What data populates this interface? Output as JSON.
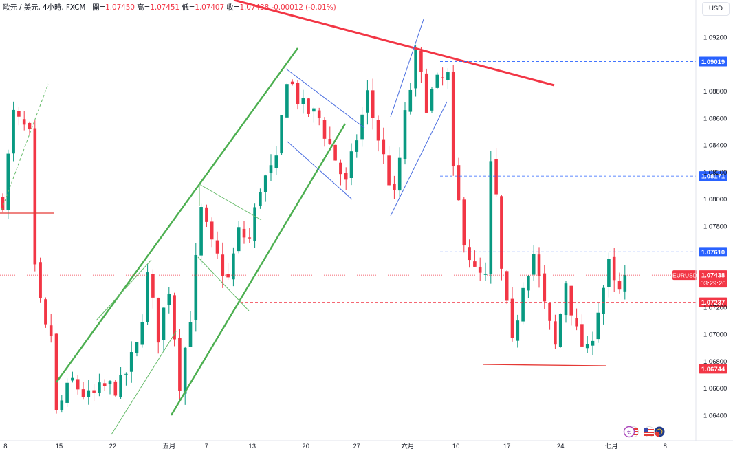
{
  "legend": {
    "symbol": "歐元 / 美元, 4小時, FXCM",
    "open_label": "開=",
    "open": "1.07450",
    "high_label": "高=",
    "high": "1.07451",
    "low_label": "低=",
    "low": "1.07407",
    "close_label": "收=",
    "close": "1.07438",
    "change": "-0.00012 (-0.01%)"
  },
  "currency": "USD",
  "colors": {
    "up": "#089981",
    "down": "#f23645",
    "trend_green": "#4caf50",
    "trend_red": "#f23645",
    "blue_line": "#2962ff",
    "price_tag": "#f23645",
    "blue_tag": "#2962ff"
  },
  "chart_data": {
    "type": "candlestick",
    "symbol": "EURUSD",
    "timeframe": "4h",
    "ylim": [
      1.0635,
      1.094
    ],
    "y_ticks": [
      "1.09200",
      "1.08800",
      "1.08600",
      "1.08400",
      "1.08200",
      "1.08000",
      "1.07800",
      "1.07200",
      "1.07000",
      "1.06800",
      "1.06600",
      "1.06400"
    ],
    "x_ticks": [
      {
        "label": "8",
        "x": 0.5
      },
      {
        "label": "15",
        "x": 10.5
      },
      {
        "label": "22",
        "x": 20.5
      },
      {
        "label": "五月",
        "x": 31
      },
      {
        "label": "7",
        "x": 38
      },
      {
        "label": "13",
        "x": 46.5
      },
      {
        "label": "20",
        "x": 56.5
      },
      {
        "label": "27",
        "x": 66
      },
      {
        "label": "六月",
        "x": 75.5
      },
      {
        "label": "10",
        "x": 84.5
      },
      {
        "label": "17",
        "x": 94
      },
      {
        "label": "24",
        "x": 104
      },
      {
        "label": "七月",
        "x": 113.5
      },
      {
        "label": "8",
        "x": 123.5
      }
    ],
    "price_tags": [
      {
        "value": "1.09019",
        "y": 1.09019,
        "color": "blue"
      },
      {
        "value": "1.08171",
        "y": 1.08171,
        "color": "blue"
      },
      {
        "value": "1.07610",
        "y": 1.0761,
        "color": "blue"
      },
      {
        "value": "1.07237",
        "y": 1.07237,
        "color": "red"
      },
      {
        "value": "1.06744",
        "y": 1.06744,
        "color": "red"
      }
    ],
    "last_price": {
      "symbol": "EURUSD",
      "value": "1.07438",
      "countdown": "03:29:26",
      "y": 1.07438
    },
    "anchors": [
      [
        0,
        1.08
      ],
      [
        1,
        1.083
      ],
      [
        2,
        1.0862
      ],
      [
        3,
        1.0856
      ],
      [
        4,
        1.0852
      ],
      [
        5,
        1.0845
      ],
      [
        6,
        1.0745
      ],
      [
        7,
        1.072
      ],
      [
        8,
        1.0702
      ],
      [
        9,
        1.07
      ],
      [
        10,
        1.064
      ],
      [
        11,
        1.065
      ],
      [
        13,
        1.0665
      ],
      [
        16,
        1.0652
      ],
      [
        19,
        1.066
      ],
      [
        22,
        1.0662
      ],
      [
        25,
        1.069
      ],
      [
        27,
        1.0742
      ],
      [
        29,
        1.07
      ],
      [
        31,
        1.0735
      ],
      [
        33,
        1.0665
      ],
      [
        35,
        1.0715
      ],
      [
        37,
        1.079
      ],
      [
        39,
        1.0764
      ],
      [
        42,
        1.074
      ],
      [
        44,
        1.0775
      ],
      [
        46,
        1.077
      ],
      [
        48,
        1.081
      ],
      [
        51,
        1.0825
      ],
      [
        53,
        1.0892
      ],
      [
        56,
        1.0867
      ],
      [
        59,
        1.086
      ],
      [
        62,
        1.083
      ],
      [
        64,
        1.081
      ],
      [
        66,
        1.0846
      ],
      [
        68,
        1.0877
      ],
      [
        71,
        1.083
      ],
      [
        73,
        1.08
      ],
      [
        75,
        1.086
      ],
      [
        77,
        1.0905
      ],
      [
        79,
        1.0872
      ],
      [
        81,
        1.0885
      ],
      [
        83,
        1.089
      ],
      [
        84,
        1.0817
      ],
      [
        85,
        1.0796
      ],
      [
        86,
        1.0773
      ],
      [
        88,
        1.0745
      ],
      [
        90,
        1.074
      ],
      [
        91,
        1.0823
      ],
      [
        92,
        1.08
      ],
      [
        93,
        1.0745
      ],
      [
        95,
        1.069
      ],
      [
        97,
        1.074
      ],
      [
        99,
        1.076
      ],
      [
        101,
        1.072
      ],
      [
        103,
        1.069
      ],
      [
        105,
        1.074
      ],
      [
        107,
        1.07
      ],
      [
        109,
        1.0685
      ],
      [
        111,
        1.072
      ],
      [
        113,
        1.075
      ],
      [
        114,
        1.0735
      ],
      [
        115,
        1.073
      ],
      [
        116,
        1.0744
      ]
    ]
  }
}
